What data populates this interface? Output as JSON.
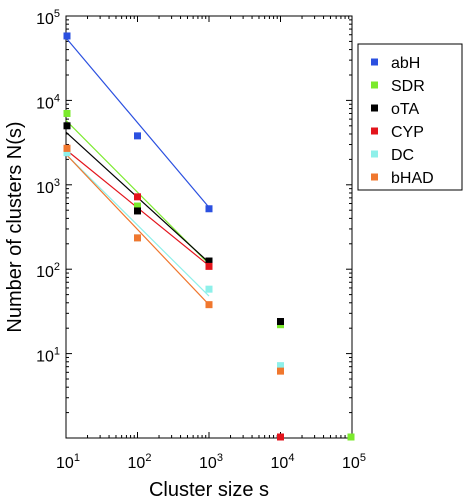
{
  "chart_data": {
    "type": "scatter",
    "xlabel": "Cluster size s",
    "ylabel": "Number of clusters N(s)",
    "xscale": "log",
    "yscale": "log",
    "xlim": [
      10,
      100000
    ],
    "ylim": [
      1,
      100000
    ],
    "xticks": [
      10,
      100,
      1000,
      10000,
      100000
    ],
    "yticks": [
      10,
      100,
      1000,
      10000,
      100000
    ],
    "grid": false,
    "legend_position": "top-right",
    "series": [
      {
        "name": "abH",
        "color": "#2b50e0",
        "points": [
          [
            10,
            58000
          ],
          [
            100,
            3800
          ],
          [
            1000,
            520
          ]
        ],
        "fit": [
          [
            10,
            55000
          ],
          [
            1000,
            540
          ]
        ]
      },
      {
        "name": "SDR",
        "color": "#7bea2d",
        "points": [
          [
            10,
            7000
          ],
          [
            100,
            560
          ],
          [
            1000,
            120
          ],
          [
            10000,
            22
          ],
          [
            100000,
            1
          ]
        ],
        "fit": [
          [
            10,
            5800
          ],
          [
            1000,
            115
          ]
        ]
      },
      {
        "name": "oTA",
        "color": "#000000",
        "points": [
          [
            10,
            5000
          ],
          [
            100,
            490
          ],
          [
            1000,
            125
          ],
          [
            10000,
            24
          ]
        ],
        "fit": [
          [
            10,
            4200
          ],
          [
            1000,
            120
          ]
        ]
      },
      {
        "name": "CYP",
        "color": "#e3141c",
        "points": [
          [
            10,
            2700
          ],
          [
            100,
            720
          ],
          [
            1000,
            108
          ],
          [
            10000,
            1
          ]
        ],
        "fit": [
          [
            10,
            2600
          ],
          [
            1000,
            110
          ]
        ]
      },
      {
        "name": "DC",
        "color": "#8ef0ea",
        "points": [
          [
            10,
            2400
          ],
          [
            100,
            235
          ],
          [
            1000,
            58
          ],
          [
            10000,
            7.2
          ]
        ],
        "fit": [
          [
            10,
            2300
          ],
          [
            1000,
            48
          ]
        ]
      },
      {
        "name": "bHAD",
        "color": "#f0772e",
        "points": [
          [
            10,
            2700
          ],
          [
            100,
            235
          ],
          [
            1000,
            38
          ],
          [
            10000,
            6.2
          ]
        ],
        "fit": [
          [
            10,
            2300
          ],
          [
            1000,
            38
          ]
        ]
      }
    ]
  }
}
